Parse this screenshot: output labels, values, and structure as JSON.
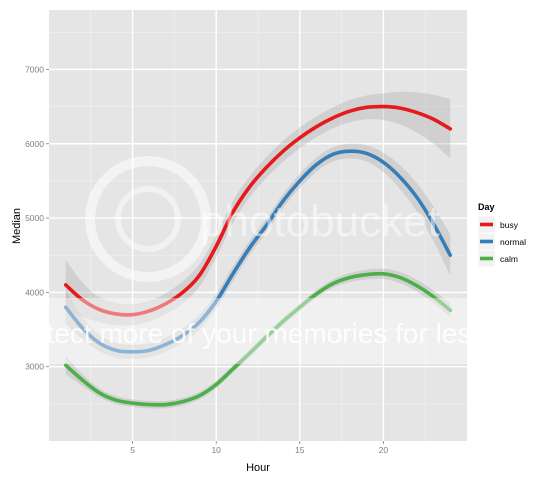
{
  "chart_data": {
    "type": "line",
    "xlabel": "Hour",
    "ylabel": "Median",
    "xlim": [
      0,
      25
    ],
    "ylim": [
      2000,
      7800
    ],
    "x_ticks": [
      5,
      10,
      15,
      20
    ],
    "y_ticks": [
      3000,
      4000,
      5000,
      6000,
      7000
    ],
    "grid": true,
    "smoothed_with_confidence_band": true,
    "legend": {
      "title": "Day",
      "position": "right"
    },
    "x": [
      1,
      2,
      3,
      4,
      5,
      6,
      7,
      8,
      9,
      10,
      11,
      12,
      13,
      14,
      15,
      16,
      17,
      18,
      19,
      20,
      21,
      22,
      23,
      24
    ],
    "series": [
      {
        "name": "busy",
        "color": "#e41a1c",
        "values": [
          4100,
          3900,
          3770,
          3710,
          3700,
          3750,
          3850,
          4000,
          4230,
          4620,
          5080,
          5420,
          5680,
          5900,
          6080,
          6230,
          6350,
          6440,
          6490,
          6500,
          6480,
          6420,
          6330,
          6200
        ],
        "band_halfwidth": [
          340,
          230,
          170,
          150,
          140,
          140,
          140,
          150,
          150,
          150,
          150,
          140,
          140,
          140,
          140,
          140,
          140,
          150,
          160,
          180,
          220,
          270,
          330,
          400
        ]
      },
      {
        "name": "normal",
        "color": "#377eb8",
        "values": [
          3800,
          3520,
          3320,
          3220,
          3200,
          3220,
          3300,
          3420,
          3600,
          3880,
          4250,
          4600,
          4900,
          5230,
          5500,
          5720,
          5860,
          5900,
          5870,
          5750,
          5550,
          5280,
          4920,
          4500
        ],
        "band_halfwidth": [
          220,
          150,
          110,
          100,
          95,
          95,
          95,
          100,
          100,
          100,
          100,
          95,
          95,
          95,
          95,
          95,
          95,
          100,
          110,
          130,
          160,
          190,
          230,
          280
        ]
      },
      {
        "name": "calm",
        "color": "#4daf4a",
        "values": [
          3020,
          2820,
          2650,
          2550,
          2510,
          2490,
          2490,
          2530,
          2610,
          2760,
          2970,
          3180,
          3400,
          3610,
          3800,
          3980,
          4120,
          4200,
          4240,
          4250,
          4200,
          4090,
          3940,
          3760
        ],
        "band_halfwidth": [
          120,
          80,
          60,
          55,
          50,
          50,
          50,
          50,
          50,
          50,
          50,
          50,
          50,
          50,
          50,
          50,
          55,
          60,
          65,
          70,
          75,
          80,
          85,
          90
        ]
      }
    ]
  },
  "watermark": {
    "main_text": "photobucket",
    "tagline": "Protect more of your memories for less!"
  }
}
